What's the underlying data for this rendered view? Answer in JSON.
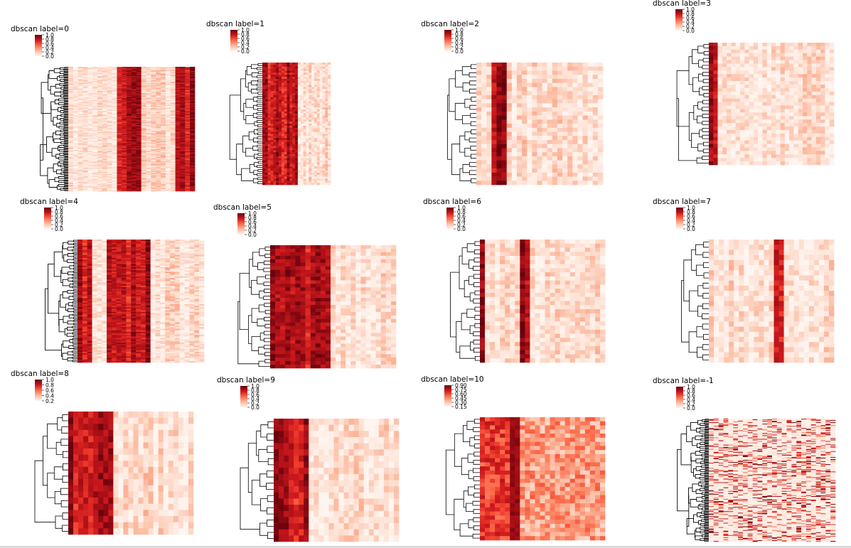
{
  "chart_data": [
    {
      "type": "heatmap",
      "title": "dbscan label=0",
      "colorbar": {
        "ticks": [
          "1.0",
          "0.8",
          "0.6",
          "0.4",
          "0.2",
          "0.0"
        ],
        "range": [
          0,
          1.0
        ]
      },
      "colormap": "Reds",
      "rows": 160,
      "cols": 26,
      "strong_cols": [
        10,
        11,
        12,
        13,
        14,
        22,
        23,
        24,
        25
      ],
      "dendrogram": "dense",
      "grid": false
    },
    {
      "type": "heatmap",
      "title": "dbscan label=1",
      "colorbar": {
        "ticks": [
          "1.0",
          "0.8",
          "0.6",
          "0.4",
          "0.2",
          "0.0"
        ],
        "range": [
          0,
          1.0
        ]
      },
      "colormap": "Reds",
      "rows": 60,
      "cols": 25,
      "strong_cols": [
        0,
        1,
        2,
        3,
        4,
        5,
        6,
        7,
        8,
        9,
        10,
        11,
        12
      ],
      "dendrogram": "medium",
      "grid": false
    },
    {
      "type": "heatmap",
      "title": "dbscan label=2",
      "colorbar": {
        "ticks": [
          "1.0",
          "0.8",
          "0.6",
          "0.4",
          "0.2",
          "0.0"
        ],
        "range": [
          0,
          1.0
        ]
      },
      "colormap": "Reds",
      "rows": 30,
      "cols": 25,
      "strong_cols": [
        3,
        4,
        5
      ],
      "dendrogram": "medium",
      "grid": false
    },
    {
      "type": "heatmap",
      "title": "dbscan label=3",
      "colorbar": {
        "ticks": [
          "1.0",
          "0.8",
          "0.6",
          "0.4",
          "0.2",
          "0.0"
        ],
        "range": [
          0,
          1.0
        ]
      },
      "colormap": "Reds",
      "rows": 35,
      "cols": 28,
      "strong_cols": [
        0,
        1
      ],
      "dendrogram": "medium",
      "grid": false
    },
    {
      "type": "heatmap",
      "title": "dbscan label=4",
      "colorbar": {
        "ticks": [
          "1.0",
          "0.8",
          "0.6",
          "0.4",
          "0.2",
          "0.0"
        ],
        "range": [
          0,
          1.0
        ]
      },
      "colormap": "Reds",
      "rows": 80,
      "cols": 26,
      "strong_cols": [
        0,
        1,
        2,
        6,
        7,
        8,
        9,
        10,
        11,
        12,
        13,
        14
      ],
      "dendrogram": "dense",
      "grid": false
    },
    {
      "type": "heatmap",
      "title": "dbscan label=5",
      "colorbar": {
        "ticks": [
          "1.0",
          "0.8",
          "0.6",
          "0.4",
          "0.2",
          "0.0"
        ],
        "range": [
          0,
          1.0
        ]
      },
      "colormap": "Reds",
      "rows": 35,
      "cols": 25,
      "strong_cols": [
        0,
        1,
        2,
        3,
        4,
        5,
        6,
        7,
        8,
        9,
        10,
        11
      ],
      "dendrogram": "medium",
      "grid": false
    },
    {
      "type": "heatmap",
      "title": "dbscan label=6",
      "colorbar": {
        "ticks": [
          "1.0",
          "0.8",
          "0.6",
          "0.4",
          "0.2",
          "0.0"
        ],
        "range": [
          0,
          1.0
        ]
      },
      "colormap": "Reds",
      "rows": 30,
      "cols": 25,
      "strong_cols": [
        0,
        8,
        9
      ],
      "dendrogram": "sparse",
      "grid": false
    },
    {
      "type": "heatmap",
      "title": "dbscan label=7",
      "colorbar": {
        "ticks": [
          "1.0",
          "0.8",
          "0.6",
          "0.4",
          "0.2",
          "0.0"
        ],
        "range": [
          0,
          1.0
        ]
      },
      "colormap": "Reds",
      "rows": 24,
      "cols": 25,
      "strong_cols": [
        13,
        14
      ],
      "dendrogram": "sparse",
      "grid": false
    },
    {
      "type": "heatmap",
      "title": "dbscan label=8",
      "colorbar": {
        "ticks": [
          "1.0",
          "0.8",
          "0.6",
          "0.4",
          "0.2"
        ],
        "range": [
          0,
          1.0
        ]
      },
      "colormap": "Reds",
      "rows": 20,
      "cols": 25,
      "strong_cols": [
        0,
        1,
        2,
        3,
        4,
        5,
        6,
        7,
        8
      ],
      "dendrogram": "sparse",
      "grid": false
    },
    {
      "type": "heatmap",
      "title": "dbscan label=9",
      "colorbar": {
        "ticks": [
          "1.0",
          "0.8",
          "0.6",
          "0.4",
          "0.2",
          "0.0"
        ],
        "range": [
          0,
          1.0
        ]
      },
      "colormap": "Reds",
      "rows": 20,
      "cols": 25,
      "strong_cols": [
        0,
        1,
        2,
        3,
        4,
        5,
        6
      ],
      "dendrogram": "sparse",
      "grid": false
    },
    {
      "type": "heatmap",
      "title": "dbscan label=10",
      "colorbar": {
        "ticks": [
          "0.90",
          "0.75",
          "0.60",
          "0.45",
          "0.30",
          "0.15"
        ],
        "range": [
          0.1,
          0.95
        ]
      },
      "colormap": "Reds",
      "rows": 30,
      "cols": 25,
      "strong_cols": [
        0,
        1,
        2,
        3,
        4,
        5,
        6,
        7,
        8,
        9,
        10,
        11,
        12,
        13,
        14,
        15,
        16,
        17,
        18,
        19,
        20,
        21,
        22,
        23,
        24
      ],
      "dendrogram": "medium",
      "grid": false
    },
    {
      "type": "heatmap",
      "title": "dbscan label=-1",
      "colorbar": {
        "ticks": [
          "1.0",
          "0.8",
          "0.6",
          "0.4",
          "0.2",
          "0.0"
        ],
        "range": [
          0,
          1.0
        ]
      },
      "colormap": "Reds",
      "rows": 170,
      "cols": 26,
      "strong_cols": [],
      "dendrogram": "dense",
      "grid": false
    }
  ]
}
